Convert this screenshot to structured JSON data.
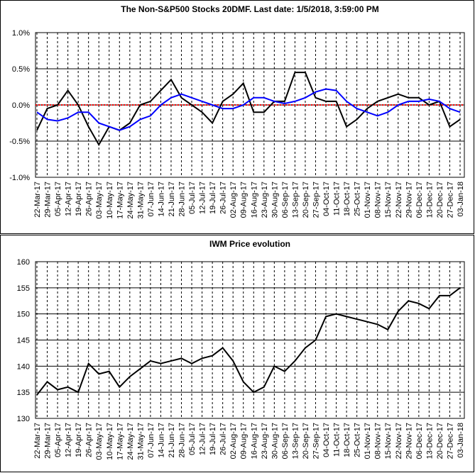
{
  "chart_data": [
    {
      "type": "line",
      "title": "The Non-S&P500 Stocks 20DMF. Last date: 1/5/2018, 3:59:00 PM",
      "categories": [
        "22-Mar-17",
        "29-Mar-17",
        "05-Apr-17",
        "12-Apr-17",
        "19-Apr-17",
        "26-Apr-17",
        "03-May-17",
        "10-May-17",
        "17-May-17",
        "24-May-17",
        "31-May-17",
        "07-Jun-17",
        "14-Jun-17",
        "21-Jun-17",
        "28-Jun-17",
        "05-Jul-17",
        "12-Jul-17",
        "19-Jul-17",
        "26-Jul-17",
        "02-Aug-17",
        "09-Aug-17",
        "16-Aug-17",
        "23-Aug-17",
        "30-Aug-17",
        "06-Sep-17",
        "13-Sep-17",
        "20-Sep-17",
        "27-Sep-17",
        "04-Oct-17",
        "11-Oct-17",
        "18-Oct-17",
        "25-Oct-17",
        "01-Nov-17",
        "08-Nov-17",
        "15-Nov-17",
        "22-Nov-17",
        "29-Nov-17",
        "06-Dec-17",
        "13-Dec-17",
        "20-Dec-17",
        "27-Dec-17",
        "03-Jan-18"
      ],
      "series": [
        {
          "color": "#000000",
          "values": [
            -0.35,
            -0.05,
            0.0,
            0.2,
            0.0,
            -0.3,
            -0.55,
            -0.3,
            -0.35,
            -0.25,
            0.0,
            0.05,
            0.2,
            0.35,
            0.1,
            0.0,
            -0.1,
            -0.25,
            0.05,
            0.15,
            0.3,
            -0.1,
            -0.1,
            0.05,
            0.05,
            0.45,
            0.45,
            0.1,
            0.05,
            0.05,
            -0.3,
            -0.2,
            -0.05,
            0.05,
            0.1,
            0.15,
            0.1,
            0.1,
            0.0,
            0.05,
            -0.3,
            -0.2
          ]
        },
        {
          "color": "#0000ff",
          "values": [
            -0.1,
            -0.2,
            -0.22,
            -0.18,
            -0.1,
            -0.1,
            -0.25,
            -0.3,
            -0.35,
            -0.3,
            -0.2,
            -0.15,
            0.0,
            0.1,
            0.15,
            0.1,
            0.05,
            0.0,
            -0.05,
            -0.05,
            0.0,
            0.1,
            0.1,
            0.05,
            0.02,
            0.05,
            0.1,
            0.18,
            0.22,
            0.2,
            0.05,
            -0.05,
            -0.1,
            -0.15,
            -0.1,
            0.0,
            0.05,
            0.05,
            0.08,
            0.05,
            -0.05,
            -0.1
          ]
        }
      ],
      "ylim": [
        -1,
        1
      ],
      "yticks": [
        {
          "value": -1,
          "label": "-1.0%"
        },
        {
          "value": -0.5,
          "label": "-0.5%"
        },
        {
          "value": 0,
          "label": "0.0%"
        },
        {
          "value": 0.5,
          "label": "0.5%"
        },
        {
          "value": 1,
          "label": "1.0%"
        }
      ],
      "grid": true,
      "reference_line": {
        "y": 0,
        "color": "#ff0000"
      }
    },
    {
      "type": "line",
      "title": "IWM Price evolution",
      "categories": [
        "22-Mar-17",
        "29-Mar-17",
        "05-Apr-17",
        "12-Apr-17",
        "19-Apr-17",
        "26-Apr-17",
        "03-May-17",
        "10-May-17",
        "17-May-17",
        "24-May-17",
        "31-May-17",
        "07-Jun-17",
        "14-Jun-17",
        "21-Jun-17",
        "28-Jun-17",
        "05-Jul-17",
        "12-Jul-17",
        "19-Jul-17",
        "26-Jul-17",
        "02-Aug-17",
        "09-Aug-17",
        "16-Aug-17",
        "23-Aug-17",
        "30-Aug-17",
        "06-Sep-17",
        "13-Sep-17",
        "20-Sep-17",
        "27-Sep-17",
        "04-Oct-17",
        "11-Oct-17",
        "18-Oct-17",
        "25-Oct-17",
        "01-Nov-17",
        "08-Nov-17",
        "15-Nov-17",
        "22-Nov-17",
        "29-Nov-17",
        "06-Dec-17",
        "13-Dec-17",
        "20-Dec-17",
        "27-Dec-17",
        "03-Jan-18"
      ],
      "series": [
        {
          "color": "#000000",
          "values": [
            134.5,
            137,
            135.5,
            136,
            135,
            140.5,
            138.5,
            139,
            136,
            138,
            139.5,
            141,
            140.5,
            141,
            141.5,
            140.5,
            141.5,
            142,
            143.5,
            141,
            137,
            135,
            136,
            140,
            139,
            141,
            143.5,
            145,
            149.5,
            150,
            149.5,
            149,
            148.5,
            148,
            147,
            150.5,
            152.5,
            152,
            151,
            153.5,
            153.5,
            155
          ]
        }
      ],
      "ylim": [
        130,
        160
      ],
      "yticks": [
        130,
        135,
        140,
        145,
        150,
        155,
        160
      ],
      "grid": true
    }
  ]
}
